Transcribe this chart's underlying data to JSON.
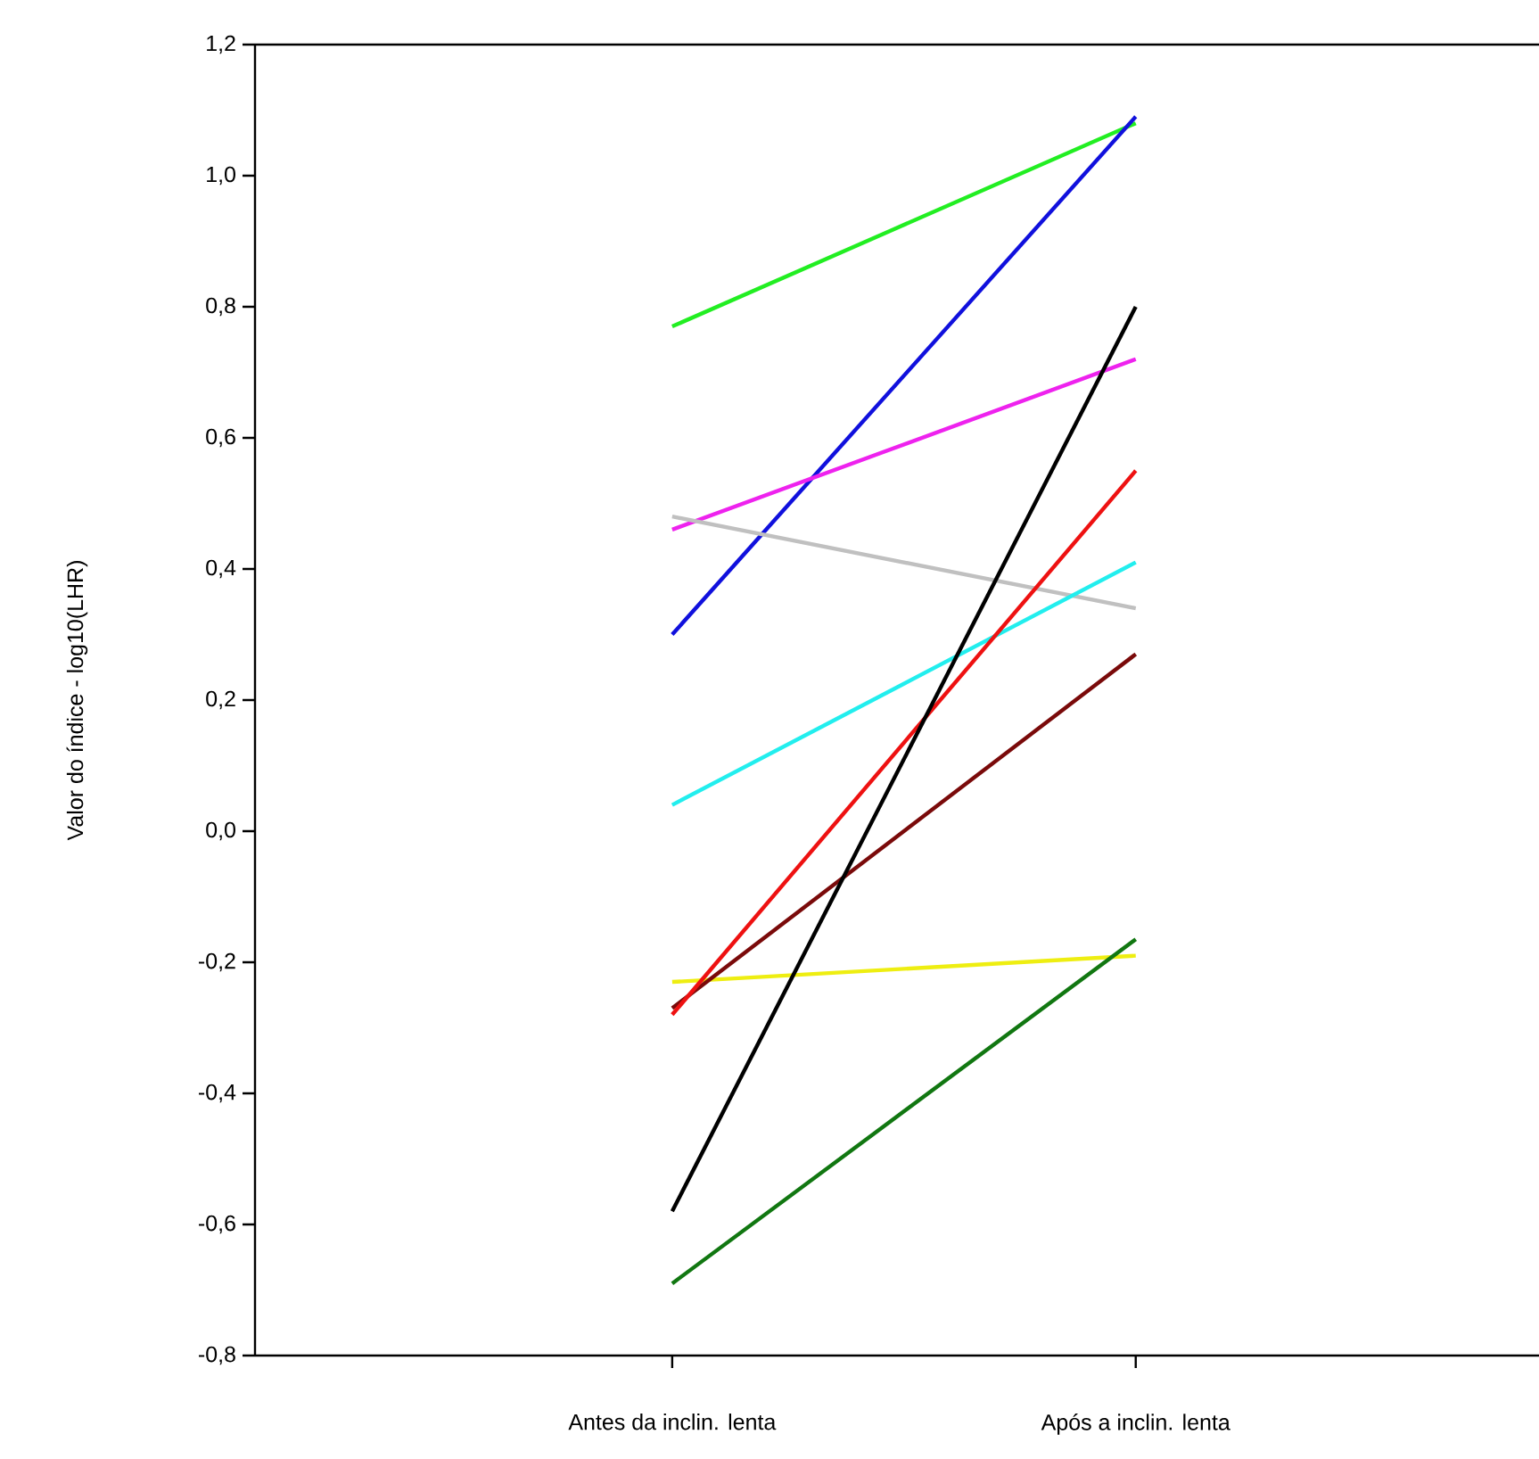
{
  "chart_data": {
    "type": "line",
    "ylabel": "Valor do índice - log10(LHR)",
    "categories": [
      "Antes da inclin. lenta",
      "Após a inclin. lenta"
    ],
    "ylim": [
      -0.8,
      1.2
    ],
    "yticks": [
      {
        "value": -0.8,
        "label": "-0,8"
      },
      {
        "value": -0.6,
        "label": "-0,6"
      },
      {
        "value": -0.4,
        "label": "-0,4"
      },
      {
        "value": -0.2,
        "label": "-0,2"
      },
      {
        "value": 0,
        "label": "0,0"
      },
      {
        "value": 0.2,
        "label": "0,2"
      },
      {
        "value": 0.4,
        "label": "0,4"
      },
      {
        "value": 0.6,
        "label": "0,6"
      },
      {
        "value": 0.8,
        "label": "0,8"
      },
      {
        "value": 1.0,
        "label": "1,0"
      },
      {
        "value": 1.2,
        "label": "1,2"
      }
    ],
    "grid": false,
    "marker": "none",
    "line_style": "solid",
    "series": [
      {
        "color": "#22ee22",
        "values": [
          0.77,
          1.08
        ]
      },
      {
        "color": "#1010dd",
        "values": [
          0.3,
          1.09
        ]
      },
      {
        "color": "#ee22ee",
        "values": [
          0.46,
          0.72
        ]
      },
      {
        "color": "#c0c0c0",
        "values": [
          0.48,
          0.34
        ]
      },
      {
        "color": "#22eeee",
        "values": [
          0.04,
          0.41
        ]
      },
      {
        "color": "#eeee11",
        "values": [
          -0.23,
          -0.19
        ]
      },
      {
        "color": "#7a0a0a",
        "values": [
          -0.27,
          0.27
        ]
      },
      {
        "color": "#ee1111",
        "values": [
          -0.28,
          0.55
        ]
      },
      {
        "color": "#000000",
        "values": [
          -0.58,
          0.8
        ]
      },
      {
        "color": "#117711",
        "values": [
          -0.69,
          -0.165
        ]
      }
    ]
  }
}
